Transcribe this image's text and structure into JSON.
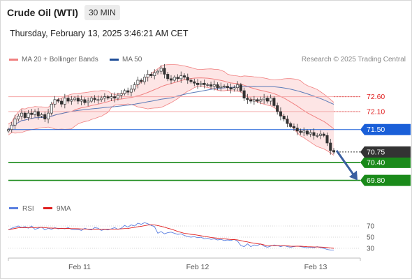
{
  "header": {
    "title": "Crude Oil (WTI)",
    "timeframe": "30 MIN"
  },
  "timestamp": "Thursday, February 13, 2025 3:46:21 AM CET",
  "legend": {
    "bollinger": "MA 20 + Bollinger Bands",
    "ma50": "MA 50",
    "copyright": "Research © 2025 Trading Central"
  },
  "colors": {
    "up_candle": "#ffffff",
    "down_candle": "#333333",
    "bollinger_line": "#f08080",
    "bollinger_fill": "#fde0e0",
    "ma50_line": "#5b7bb8",
    "resistance_line": "#f4a8a8",
    "blue_level": "#1a5fd8",
    "green_level": "#1a8a1a",
    "current_price_bg": "#333333",
    "rsi_line": "#5a7fe0",
    "rsi_ma_line": "#e02020",
    "arrow": "#3a5fa0"
  },
  "chart_data": [
    {
      "type": "candlestick",
      "x_ticks": [
        "Feb 11",
        "Feb 12",
        "Feb 13"
      ],
      "y_range": [
        69.3,
        73.5
      ],
      "levels": [
        {
          "value": 72.6,
          "label": "72.60",
          "kind": "resistance"
        },
        {
          "value": 72.1,
          "label": "72.10",
          "kind": "resistance"
        },
        {
          "value": 71.5,
          "label": "71.50",
          "kind": "pivot"
        },
        {
          "value": 70.4,
          "label": "70.40",
          "kind": "support"
        },
        {
          "value": 69.8,
          "label": "69.80",
          "kind": "support"
        }
      ],
      "current_price": {
        "value": 70.75,
        "label": "70.75"
      },
      "candles_close": [
        71.5,
        71.65,
        71.85,
        71.95,
        72.05,
        71.9,
        72.05,
        72.0,
        72.1,
        71.95,
        72.0,
        71.85,
        72.05,
        72.35,
        72.5,
        72.45,
        72.35,
        72.55,
        72.45,
        72.5,
        72.55,
        72.45,
        72.5,
        72.4,
        72.45,
        72.55,
        72.5,
        72.5,
        72.55,
        72.6,
        72.55,
        72.6,
        72.55,
        72.65,
        72.7,
        72.8,
        72.75,
        72.85,
        73.0,
        73.15,
        73.1,
        73.25,
        73.35,
        73.3,
        73.4,
        73.45,
        73.55,
        73.35,
        73.2,
        73.15,
        73.25,
        73.2,
        73.3,
        73.25,
        73.15,
        73.1,
        73.05,
        73.0,
        73.05,
        73.0,
        73.0,
        72.95,
        73.0,
        72.9,
        72.95,
        72.95,
        72.9,
        72.85,
        72.9,
        73.0,
        72.8,
        72.55,
        72.5,
        72.45,
        72.5,
        72.45,
        72.5,
        72.55,
        72.45,
        72.55,
        72.3,
        72.1,
        71.95,
        71.85,
        71.7,
        71.6,
        71.55,
        71.45,
        71.4,
        71.45,
        71.35,
        71.4,
        71.3,
        71.3,
        71.35,
        71.3,
        71.05,
        70.8,
        70.75
      ],
      "series": [
        {
          "name": "MA 20 + Bollinger Bands"
        },
        {
          "name": "MA 50"
        }
      ]
    },
    {
      "type": "line",
      "series": [
        {
          "name": "RSI"
        },
        {
          "name": "9MA"
        }
      ],
      "y_ticks": [
        70,
        50,
        30
      ],
      "y_range": [
        15,
        85
      ],
      "rsi_values": [
        63,
        66,
        68,
        70,
        67,
        69,
        66,
        70,
        64,
        66,
        68,
        63,
        66,
        64,
        67,
        65,
        66,
        65,
        67,
        64,
        63,
        64,
        62,
        66,
        64,
        63,
        67,
        66,
        62,
        64,
        63,
        65,
        67,
        64,
        66,
        71,
        68,
        72,
        70,
        75,
        73,
        76,
        74,
        71,
        69,
        57,
        60,
        56,
        58,
        59,
        57,
        55,
        56,
        53,
        51,
        50,
        51,
        49,
        50,
        47,
        48,
        46,
        47,
        45,
        46,
        44,
        45,
        44,
        46,
        43,
        35,
        33,
        38,
        33,
        36,
        35,
        38,
        34,
        32,
        34,
        36,
        35,
        33,
        35,
        33,
        32,
        33,
        34,
        33,
        32,
        31,
        32,
        31,
        33,
        31,
        30,
        28,
        27,
        27
      ]
    }
  ]
}
